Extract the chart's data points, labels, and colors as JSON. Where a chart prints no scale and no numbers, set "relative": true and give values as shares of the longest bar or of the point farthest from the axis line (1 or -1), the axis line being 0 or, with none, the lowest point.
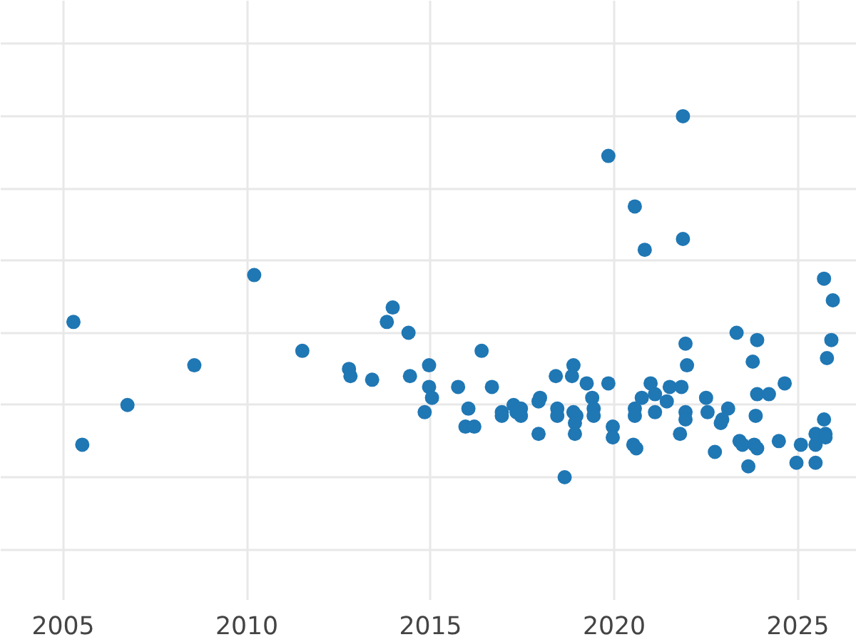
{
  "chart_data": {
    "type": "scatter",
    "relative": true,
    "grid": true,
    "tick_labels": "x",
    "marker": "circle",
    "xlim": [
      2003.3,
      2026.6
    ],
    "xticks": [
      2005,
      2010,
      2015,
      2020,
      2025
    ],
    "series": [
      {
        "color": "#1f77b4",
        "x": [
          2005.28,
          2005.52,
          2006.75,
          2008.57,
          2010.2,
          2011.51,
          2012.78,
          2012.82,
          2013.41,
          2013.81,
          2013.97,
          2014.4,
          2014.44,
          2014.96,
          2014.96,
          2015.04,
          2014.84,
          2021.87,
          2019.84,
          2020.56,
          2020.83,
          2021.87,
          2025.71,
          2025.95,
          2025.91,
          2025.79,
          2016.39,
          2015.75,
          2016.67,
          2016.03,
          2015.95,
          2016.19,
          2016.94,
          2016.94,
          2017.26,
          2017.34,
          2017.46,
          2017.46,
          2017.94,
          2017.98,
          2017.94,
          2018.41,
          2018.45,
          2018.45,
          2018.89,
          2018.85,
          2018.89,
          2018.97,
          2018.93,
          2018.93,
          2018.65,
          2019.25,
          2019.4,
          2019.44,
          2019.44,
          2019.84,
          2019.96,
          2019.96,
          2020.56,
          2020.56,
          2020.52,
          2020.6,
          2020.75,
          2020.99,
          2021.11,
          2021.11,
          2021.43,
          2021.51,
          2021.83,
          2021.94,
          2021.98,
          2021.94,
          2021.94,
          2021.79,
          2022.5,
          2022.54,
          2023.1,
          2022.94,
          2022.9,
          2022.74,
          2023.33,
          2023.89,
          2023.77,
          2023.89,
          2024.21,
          2023.85,
          2024.64,
          2023.41,
          2023.49,
          2023.81,
          2023.89,
          2023.65,
          2024.48,
          2025.08,
          2024.96,
          2025.48,
          2025.48,
          2025.48,
          2025.71,
          2025.75,
          2025.75
        ],
        "values": [
          0.43,
          0.09,
          0.2,
          0.31,
          0.56,
          0.35,
          0.3,
          0.28,
          0.27,
          0.43,
          0.47,
          0.4,
          0.28,
          0.31,
          0.25,
          0.22,
          0.18,
          1.0,
          0.89,
          0.75,
          0.63,
          0.66,
          0.55,
          0.49,
          0.38,
          0.33,
          0.35,
          0.25,
          0.25,
          0.19,
          0.14,
          0.14,
          0.18,
          0.17,
          0.2,
          0.18,
          0.17,
          0.19,
          0.21,
          0.22,
          0.12,
          0.28,
          0.19,
          0.17,
          0.31,
          0.28,
          0.18,
          0.17,
          0.15,
          0.12,
          0.0,
          0.26,
          0.22,
          0.19,
          0.17,
          0.26,
          0.14,
          0.11,
          0.19,
          0.17,
          0.09,
          0.08,
          0.22,
          0.26,
          0.23,
          0.18,
          0.21,
          0.25,
          0.25,
          0.37,
          0.31,
          0.18,
          0.16,
          0.12,
          0.22,
          0.18,
          0.19,
          0.16,
          0.15,
          0.07,
          0.4,
          0.38,
          0.32,
          0.23,
          0.23,
          0.17,
          0.26,
          0.1,
          0.09,
          0.09,
          0.08,
          0.03,
          0.1,
          0.09,
          0.04,
          0.04,
          0.09,
          0.12,
          0.16,
          0.12,
          0.11
        ]
      }
    ]
  }
}
